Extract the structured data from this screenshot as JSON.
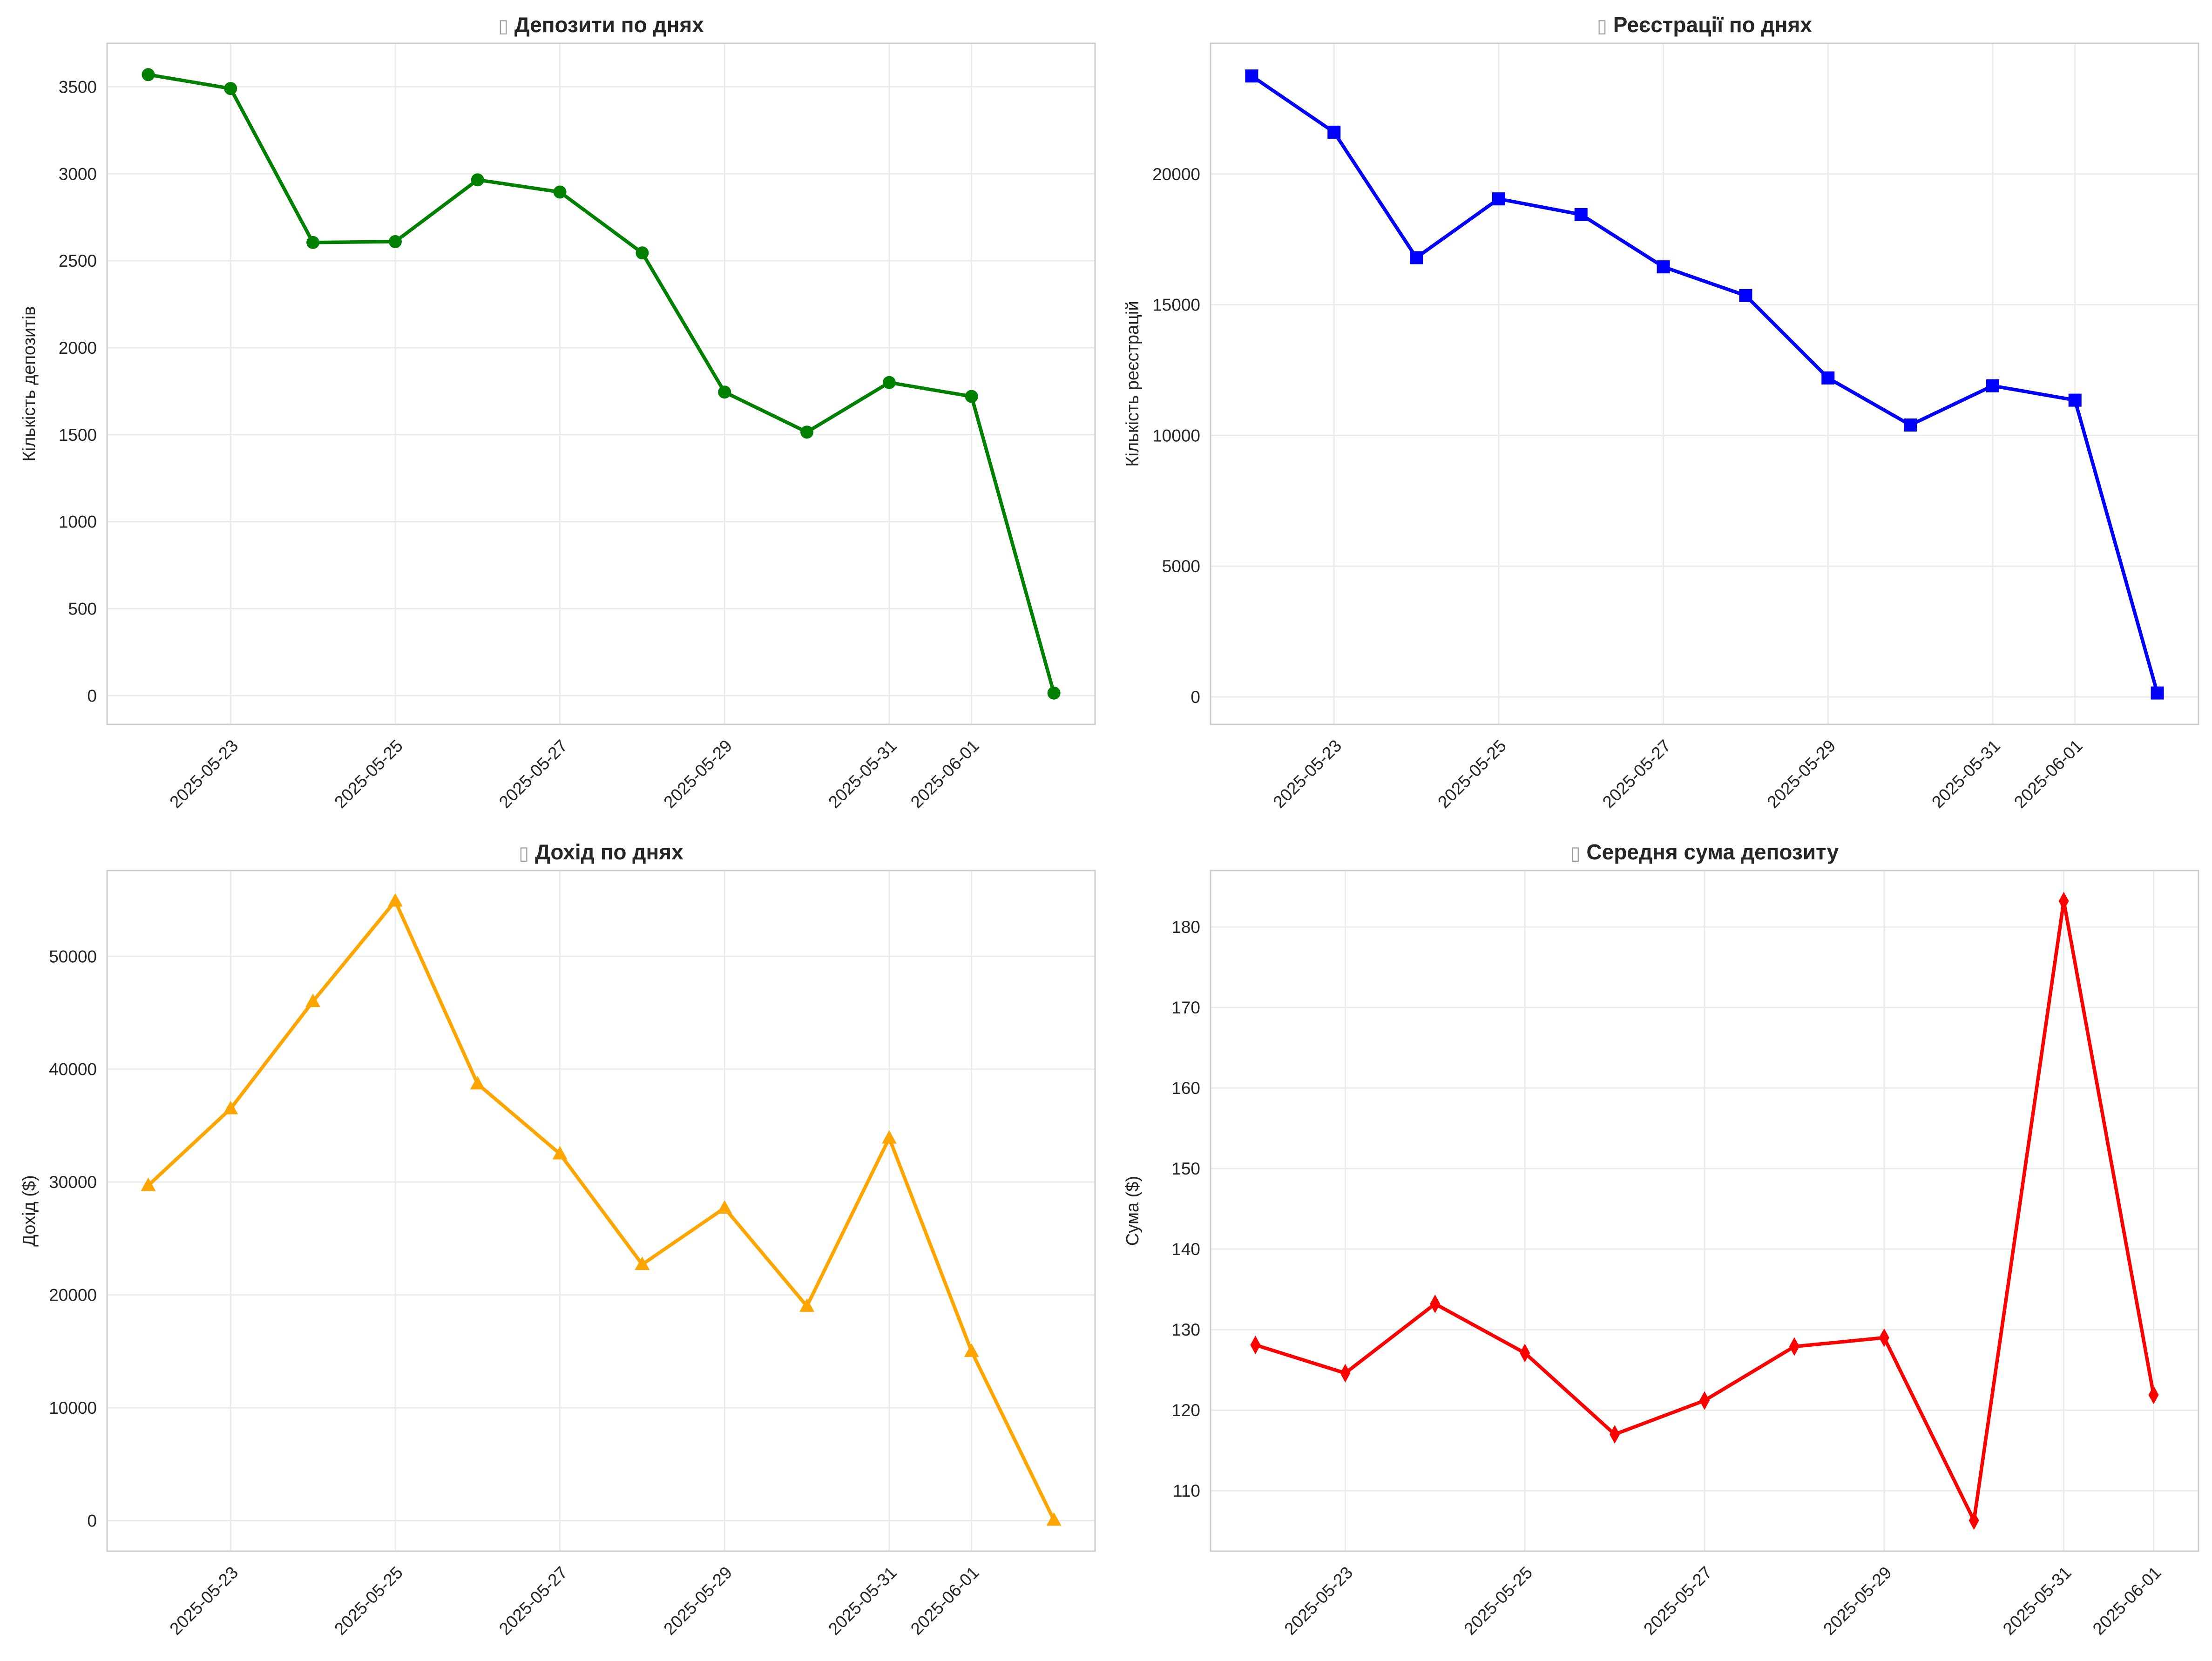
{
  "chart_data": [
    {
      "type": "line",
      "title": "Депозити по днях",
      "xlabel": "",
      "ylabel": "Кількість депозитів",
      "x": [
        "2025-05-22",
        "2025-05-23",
        "2025-05-24",
        "2025-05-25",
        "2025-05-26",
        "2025-05-27",
        "2025-05-28",
        "2025-05-29",
        "2025-05-30",
        "2025-05-31",
        "2025-06-01",
        "2025-06-02"
      ],
      "series": [
        {
          "values": [
            3570,
            3490,
            2605,
            2610,
            2965,
            2895,
            2545,
            1745,
            1515,
            1800,
            1720,
            15
          ],
          "color": "#008000",
          "marker": "circle"
        }
      ],
      "ylim": [
        -165,
        3750
      ],
      "xlim": [
        "2025-05-21T12:00",
        "2025-06-02T12:00"
      ],
      "yticks": [
        0,
        500,
        1000,
        1500,
        2000,
        2500,
        3000,
        3500
      ],
      "xticks": [
        "2025-05-23",
        "2025-05-25",
        "2025-05-27",
        "2025-05-29",
        "2025-05-31",
        "2025-06-01"
      ],
      "grid": true
    },
    {
      "type": "line",
      "title": "Реєстрації по днях",
      "xlabel": "",
      "ylabel": "Кількість реєстрацій",
      "x": [
        "2025-05-22",
        "2025-05-23",
        "2025-05-24",
        "2025-05-25",
        "2025-05-26",
        "2025-05-27",
        "2025-05-28",
        "2025-05-29",
        "2025-05-30",
        "2025-05-31",
        "2025-06-01",
        "2025-06-02"
      ],
      "series": [
        {
          "values": [
            23750,
            21600,
            16800,
            19050,
            18450,
            16450,
            15350,
            12200,
            10400,
            11900,
            11350,
            150
          ],
          "color": "#0000ff",
          "marker": "square"
        }
      ],
      "ylim": [
        -1050,
        25000
      ],
      "xlim": [
        "2025-05-21T12:00",
        "2025-06-02T12:00"
      ],
      "yticks": [
        0,
        5000,
        10000,
        15000,
        20000
      ],
      "xticks": [
        "2025-05-23",
        "2025-05-25",
        "2025-05-27",
        "2025-05-29",
        "2025-05-31",
        "2025-06-01"
      ],
      "grid": true
    },
    {
      "type": "line",
      "title": "Дохід по днях",
      "xlabel": "",
      "ylabel": "Дохід ($)",
      "x": [
        "2025-05-22",
        "2025-05-23",
        "2025-05-24",
        "2025-05-25",
        "2025-05-26",
        "2025-05-27",
        "2025-05-28",
        "2025-05-29",
        "2025-05-30",
        "2025-05-31",
        "2025-06-01",
        "2025-06-02"
      ],
      "series": [
        {
          "values": [
            29700,
            36500,
            46000,
            54900,
            38700,
            32500,
            22700,
            27700,
            19000,
            33900,
            15000,
            50
          ],
          "color": "#ffa500",
          "marker": "triangle"
        }
      ],
      "ylim": [
        -2700,
        57600
      ],
      "xlim": [
        "2025-05-21T12:00",
        "2025-06-02T12:00"
      ],
      "yticks": [
        0,
        10000,
        20000,
        30000,
        40000,
        50000
      ],
      "xticks": [
        "2025-05-23",
        "2025-05-25",
        "2025-05-27",
        "2025-05-29",
        "2025-05-31",
        "2025-06-01"
      ],
      "grid": true
    },
    {
      "type": "line",
      "title": "Середня сума депозиту",
      "xlabel": "",
      "ylabel": "Сума ($)",
      "x": [
        "2025-05-22",
        "2025-05-23",
        "2025-05-24",
        "2025-05-25",
        "2025-05-26",
        "2025-05-27",
        "2025-05-28",
        "2025-05-29",
        "2025-05-30",
        "2025-05-31",
        "2025-06-01"
      ],
      "series": [
        {
          "values": [
            128.1,
            124.6,
            133.2,
            127.1,
            117.0,
            121.2,
            127.9,
            129.0,
            106.3,
            183.2,
            121.9
          ],
          "color": "#ff0000",
          "marker": "diamond"
        }
      ],
      "ylim": [
        102.5,
        187
      ],
      "xlim": [
        "2025-05-21T12:00",
        "2025-06-01T12:00"
      ],
      "yticks": [
        110,
        120,
        130,
        140,
        150,
        160,
        170,
        180
      ],
      "xticks": [
        "2025-05-23",
        "2025-05-25",
        "2025-05-27",
        "2025-05-29",
        "2025-05-31",
        "2025-06-01"
      ],
      "grid": true
    }
  ]
}
